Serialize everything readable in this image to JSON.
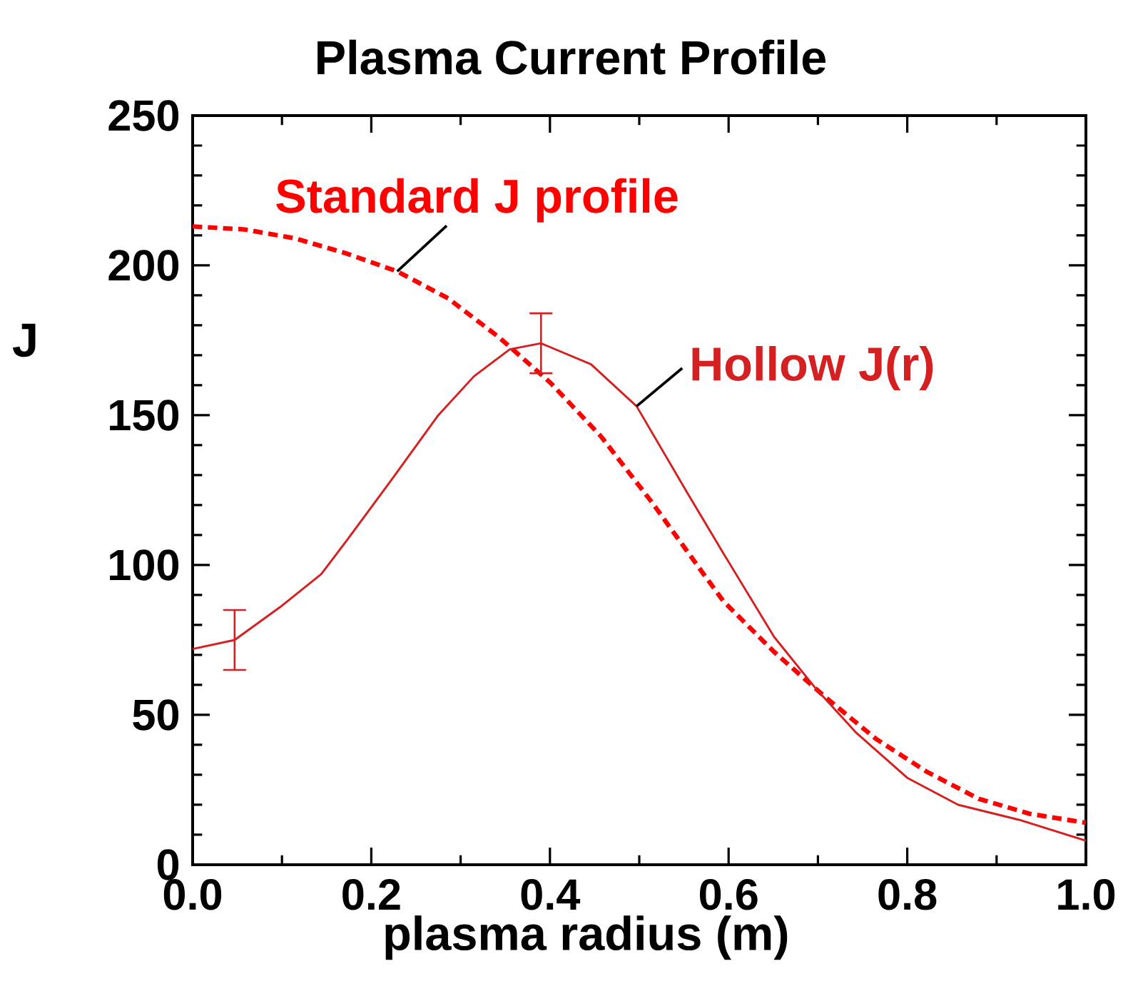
{
  "chart_data": {
    "type": "line",
    "title": "Plasma Current Profile",
    "xlabel": "plasma radius (m)",
    "ylabel": "J",
    "xlim": [
      0,
      1
    ],
    "ylim": [
      0,
      250
    ],
    "xticks": [
      {
        "value": 0,
        "label": "0.0"
      },
      {
        "value": 0.2,
        "label": "0.2"
      },
      {
        "value": 0.4,
        "label": "0.4"
      },
      {
        "value": 0.6,
        "label": "0.6"
      },
      {
        "value": 0.8,
        "label": "0.8"
      },
      {
        "value": 1,
        "label": "1.0"
      }
    ],
    "yticks": [
      0,
      50,
      100,
      150,
      200,
      250
    ],
    "marker": "none",
    "legend": false,
    "series": [
      {
        "name": "Standard J profile",
        "color": "#ff0000",
        "line_style": "dashed",
        "x": [
          0,
          0.058,
          0.115,
          0.172,
          0.229,
          0.286,
          0.343,
          0.4,
          0.457,
          0.514,
          0.572,
          0.594,
          0.651,
          0.708,
          0.765,
          0.822,
          0.88,
          0.937,
          1.0
        ],
        "values": [
          213,
          212,
          209,
          204,
          198,
          189,
          176,
          161,
          143,
          121,
          97,
          88,
          71,
          56,
          42,
          31,
          22,
          17,
          14
        ]
      },
      {
        "name": "Hollow J(r)",
        "color": "#d42020",
        "line_style": "solid",
        "x": [
          0,
          0.047,
          0.098,
          0.144,
          0.172,
          0.224,
          0.275,
          0.315,
          0.355,
          0.39,
          0.446,
          0.497,
          0.554,
          0.594,
          0.651,
          0.697,
          0.743,
          0.8,
          0.857,
          0.925,
          1.0
        ],
        "values": [
          72,
          75,
          86,
          97,
          108,
          129,
          150,
          163,
          172,
          174,
          167,
          153,
          124,
          104,
          76,
          59,
          44,
          29,
          20,
          15,
          8
        ],
        "errors": [
          null,
          10,
          null,
          null,
          null,
          null,
          null,
          null,
          null,
          10,
          null,
          null,
          null,
          null,
          null,
          null,
          null,
          null,
          null,
          null,
          null
        ]
      }
    ]
  }
}
